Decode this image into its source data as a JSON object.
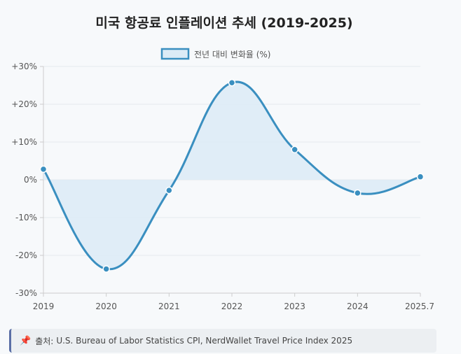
{
  "chart_data": {
    "type": "area",
    "title": "미국 항공료 인플레이션 추세 (2019-2025)",
    "categories": [
      "2019",
      "2020",
      "2021",
      "2022",
      "2023",
      "2024",
      "2025.7"
    ],
    "series": [
      {
        "name": "전년 대비 변화율 (%)",
        "values": [
          2.8,
          -23.6,
          -2.8,
          25.7,
          8.0,
          -3.5,
          0.8
        ]
      }
    ],
    "ylim": [
      -30,
      30
    ],
    "yticks": [
      "+30%",
      "+20%",
      "+10%",
      "0%",
      "-10%",
      "-20%",
      "-30%"
    ],
    "ytick_values": [
      30,
      20,
      10,
      0,
      -10,
      -20,
      -30
    ],
    "grid": true,
    "legend_position": "top-center",
    "line_color": "#3a8fc0",
    "fill_color": "#dcebf6"
  },
  "source": {
    "icon": "pushpin-icon",
    "label": "출처:",
    "text": "U.S. Bureau of Labor Statistics CPI, NerdWallet Travel Price Index 2025"
  }
}
